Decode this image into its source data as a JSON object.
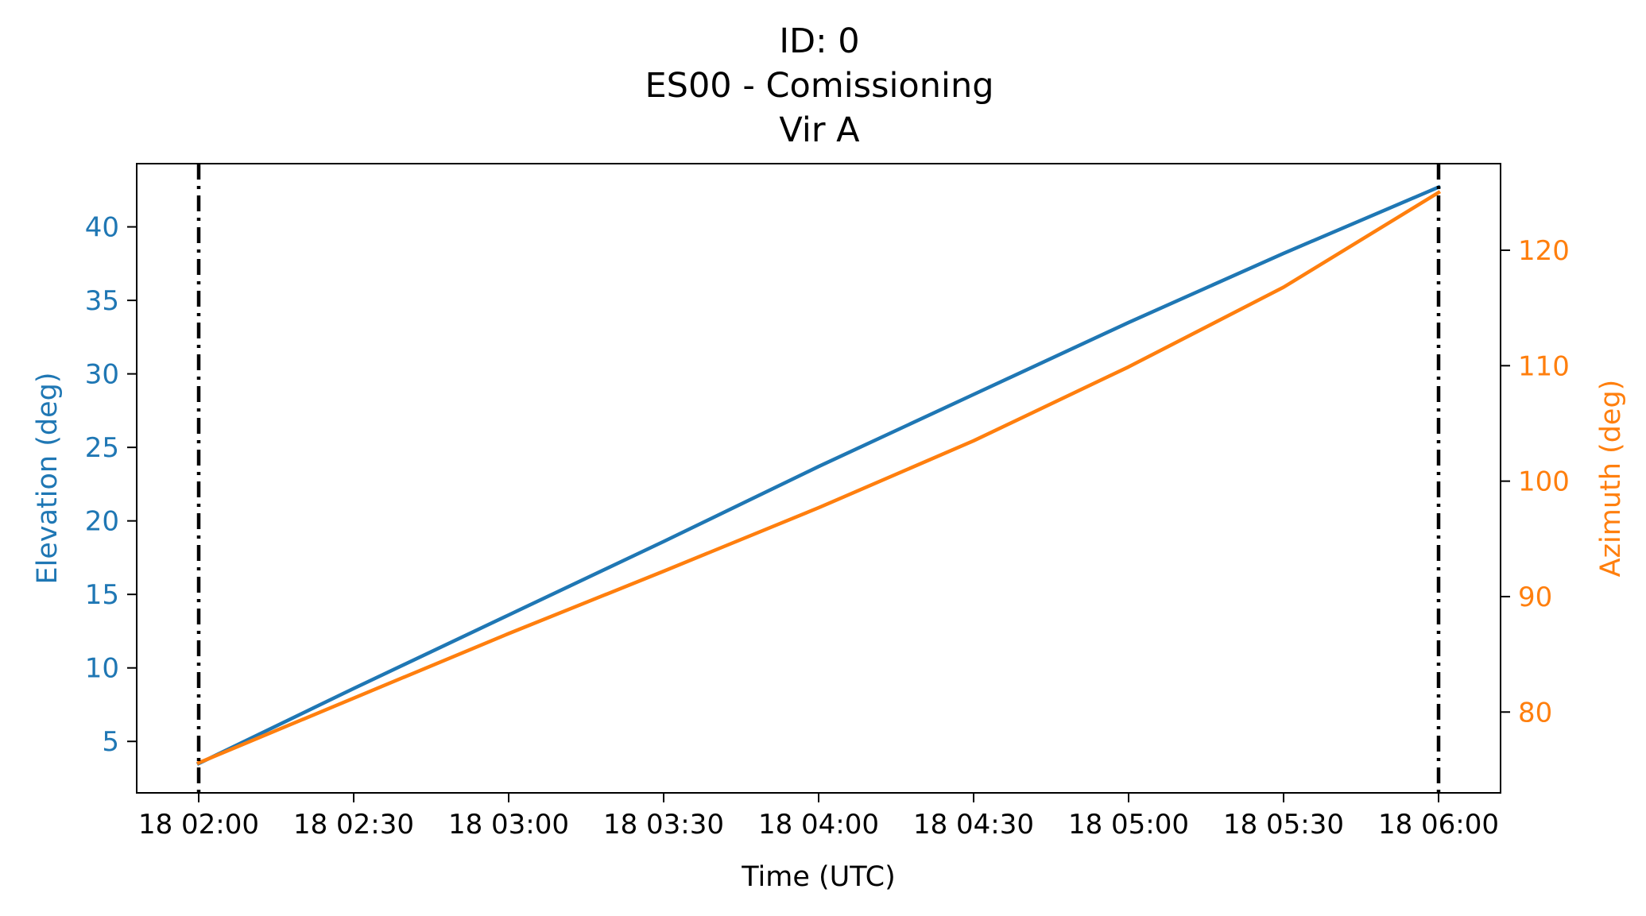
{
  "chart_data": {
    "type": "line",
    "title_lines": [
      "ID: 0",
      "ES00 - Comissioning",
      "Vir A"
    ],
    "xlabel": "Time (UTC)",
    "ylabel_left": "Elevation (deg)",
    "ylabel_right": "Azimuth (deg)",
    "x_ticks": [
      "18 02:00",
      "18 02:30",
      "18 03:00",
      "18 03:30",
      "18 04:00",
      "18 04:30",
      "18 05:00",
      "18 05:30",
      "18 06:00"
    ],
    "xlim": [
      "18 01:48",
      "18 06:12"
    ],
    "y_left_ticks": [
      5,
      10,
      15,
      20,
      25,
      30,
      35,
      40
    ],
    "y_left_lim": [
      1.5,
      44.3
    ],
    "y_right_ticks": [
      80,
      90,
      100,
      110,
      120
    ],
    "y_right_lim": [
      73,
      127.5
    ],
    "vertical_lines": [
      "18 02:00",
      "18 06:00"
    ],
    "grid": false,
    "series": [
      {
        "axis": "left",
        "color": "#1f77b4",
        "x": [
          "18 02:00",
          "18 02:30",
          "18 03:00",
          "18 03:30",
          "18 04:00",
          "18 04:30",
          "18 05:00",
          "18 05:30",
          "18 06:00"
        ],
        "values": [
          3.5,
          8.6,
          13.6,
          18.6,
          23.7,
          28.6,
          33.5,
          38.2,
          42.7
        ]
      },
      {
        "axis": "right",
        "color": "#ff7f0e",
        "x": [
          "18 02:00",
          "18 02:30",
          "18 03:00",
          "18 03:30",
          "18 04:00",
          "18 04:30",
          "18 05:00",
          "18 05:30",
          "18 06:00"
        ],
        "values": [
          75.6,
          81.2,
          86.8,
          92.2,
          97.7,
          103.5,
          109.9,
          116.8,
          125.0
        ]
      }
    ],
    "colors": {
      "left_axis": "#1f77b4",
      "right_axis": "#ff7f0e",
      "vertical_lines": "#000000"
    }
  }
}
